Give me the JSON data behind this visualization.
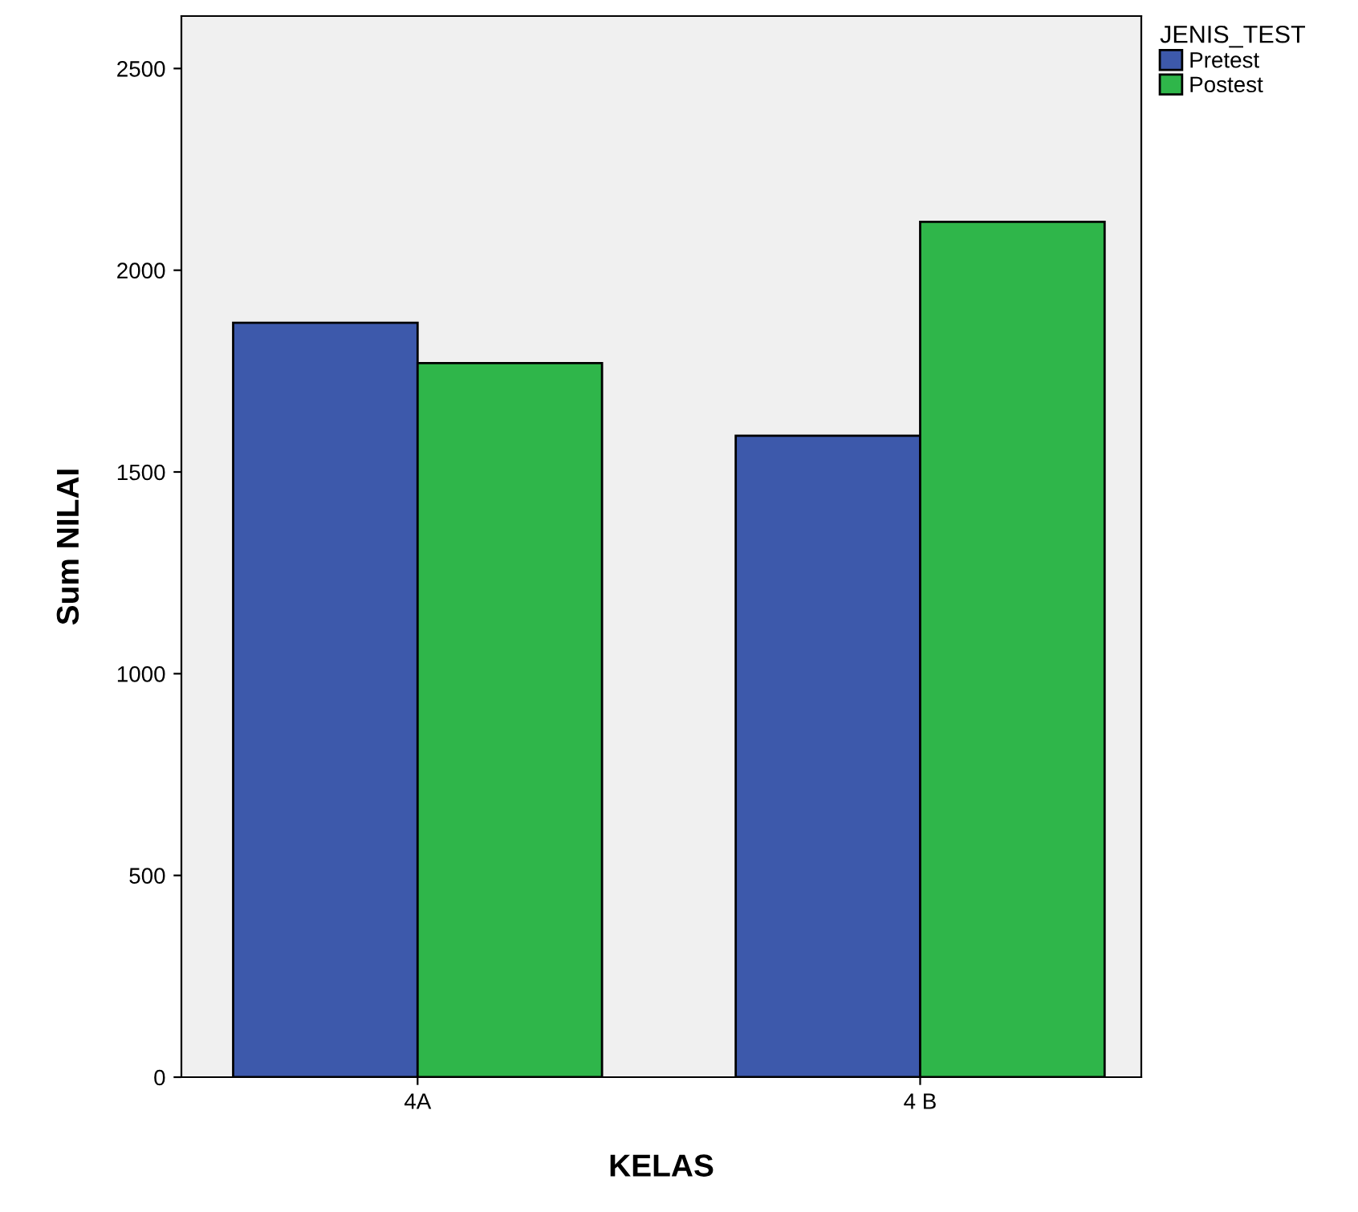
{
  "chart_data": {
    "type": "bar",
    "xlabel": "KELAS",
    "ylabel": "Sum NILAI",
    "legend_title": "JENIS_TEST",
    "categories": [
      "4A",
      "4 B"
    ],
    "series": [
      {
        "name": "Pretest",
        "color": "#3d59ab",
        "values": [
          1870,
          1590
        ]
      },
      {
        "name": "Postest",
        "color": "#2fb64a",
        "values": [
          1770,
          2120
        ]
      }
    ],
    "ylim": [
      0,
      2630
    ],
    "yticks": [
      0,
      500,
      1000,
      1500,
      2000,
      2500
    ],
    "grid": false,
    "legend": "top right"
  }
}
